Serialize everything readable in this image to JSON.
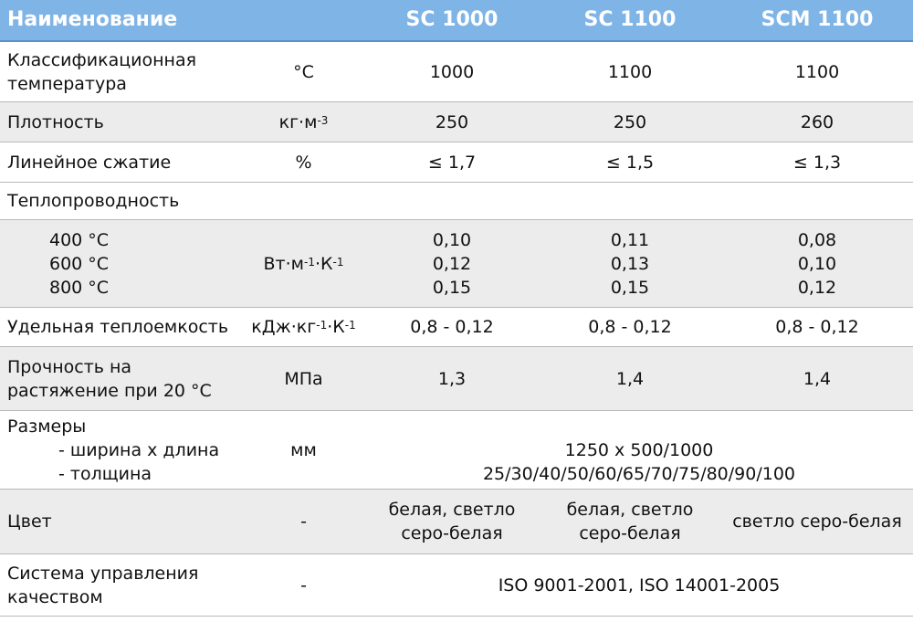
{
  "header": {
    "name": "Наименование",
    "col1": "SC 1000",
    "col2": "SC 1100",
    "col3": "SCM 1100"
  },
  "rows": {
    "classtemp": {
      "label_line1": "Классификационная",
      "label_line2": "температура",
      "unit": "°C",
      "v1": "1000",
      "v2": "1100",
      "v3": "1100"
    },
    "density": {
      "label": "Плотность",
      "unit_base": "кг·м",
      "unit_sup": "-3",
      "v1": "250",
      "v2": "250",
      "v3": "260"
    },
    "shrink": {
      "label": "Линейное сжатие",
      "unit": "%",
      "v1": "≤ 1,7",
      "v2": "≤ 1,5",
      "v3": "≤ 1,3"
    },
    "conductivity": {
      "label": "Теплопроводность",
      "temps": [
        "400 °C",
        "600 °C",
        "800 °C"
      ],
      "unit_a": "Вт·м",
      "unit_sup1": "-1",
      "unit_b": "·К",
      "unit_sup2": "-1",
      "v1": [
        "0,10",
        "0,12",
        "0,15"
      ],
      "v2": [
        "0,11",
        "0,13",
        "0,15"
      ],
      "v3": [
        "0,08",
        "0,10",
        "0,12"
      ]
    },
    "heatcap": {
      "label": "Удельная теплоемкость",
      "unit_a": "кДж·кг",
      "unit_sup1": "-1",
      "unit_b": "·К",
      "unit_sup2": "-1",
      "v1": "0,8 - 0,12",
      "v2": "0,8 - 0,12",
      "v3": "0,8 - 0,12"
    },
    "strength": {
      "label_line1": "Прочность на",
      "label_line2": "растяжение при 20 °C",
      "unit": "МПа",
      "v1": "1,3",
      "v2": "1,4",
      "v3": "1,4"
    },
    "dimensions": {
      "label": "Размеры",
      "sub1": "- ширина х длина",
      "sub2": "- толщина",
      "unit": "мм",
      "val1": "1250 х 500/1000",
      "val2": "25/30/40/50/60/65/70/75/80/90/100"
    },
    "color": {
      "label": "Цвет",
      "unit": "-",
      "v1_line1": "белая, светло",
      "v1_line2": "серо-белая",
      "v2_line1": "белая, светло",
      "v2_line2": "серо-белая",
      "v3": "светло серо-белая"
    },
    "quality": {
      "label_line1": "Система управления",
      "label_line2": "качеством",
      "unit": "-",
      "val": "ISO 9001-2001, ISO 14001-2005"
    }
  }
}
